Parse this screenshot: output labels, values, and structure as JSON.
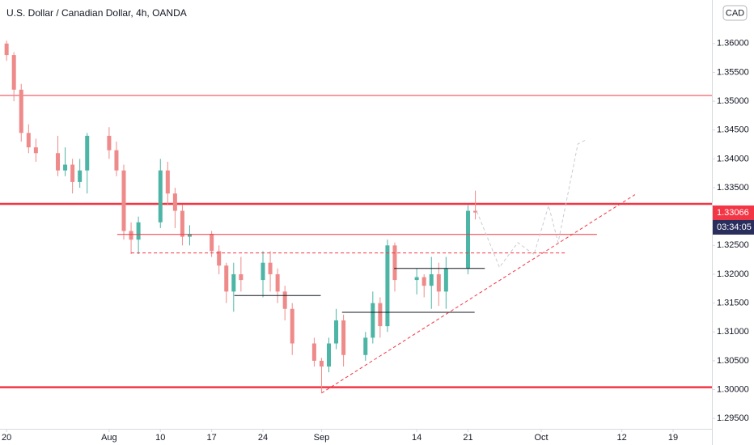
{
  "chart_data": {
    "type": "candlestick",
    "title": "U.S. Dollar / Canadian Dollar, 4h, OANDA",
    "currency": "CAD",
    "last_price": 1.33066,
    "countdown": "03:34:05",
    "up_color": "#4cb5a5",
    "down_color": "#ef8a8a",
    "x": [
      0,
      1,
      2,
      3,
      4,
      7,
      8,
      9,
      10,
      11,
      14,
      15,
      16,
      17,
      18,
      21,
      22,
      23,
      24,
      25,
      28,
      29,
      30,
      31,
      32,
      35,
      36,
      37,
      38,
      39,
      42,
      43,
      44,
      45,
      46,
      49,
      50,
      51,
      52,
      53,
      56,
      57,
      58,
      59,
      60,
      63,
      64
    ],
    "open": [
      1.36,
      1.358,
      1.352,
      1.3445,
      1.342,
      1.341,
      1.338,
      1.339,
      1.336,
      1.338,
      1.344,
      1.3415,
      1.338,
      1.3275,
      1.326,
      1.329,
      1.338,
      1.334,
      1.331,
      1.3265,
      1.327,
      1.324,
      1.3215,
      1.317,
      1.32,
      1.319,
      1.322,
      1.32,
      1.317,
      1.314,
      1.308,
      1.305,
      1.304,
      1.308,
      1.312,
      1.306,
      1.309,
      1.315,
      1.311,
      1.325,
      1.319,
      1.3195,
      1.318,
      1.32,
      1.317,
      1.321,
      1.331
    ],
    "high": [
      1.3605,
      1.3585,
      1.353,
      1.346,
      1.3435,
      1.344,
      1.342,
      1.34,
      1.34,
      1.3445,
      1.3455,
      1.343,
      1.339,
      1.329,
      1.33,
      1.34,
      1.3395,
      1.335,
      1.332,
      1.3285,
      1.3275,
      1.325,
      1.322,
      1.322,
      1.323,
      1.324,
      1.324,
      1.321,
      1.318,
      1.315,
      1.309,
      1.3055,
      1.309,
      1.314,
      1.313,
      1.31,
      1.317,
      1.316,
      1.326,
      1.3255,
      1.321,
      1.32,
      1.323,
      1.322,
      1.323,
      1.332,
      1.3345
    ],
    "low": [
      1.357,
      1.35,
      1.343,
      1.341,
      1.3395,
      1.337,
      1.337,
      1.334,
      1.335,
      1.334,
      1.34,
      1.337,
      1.326,
      1.3235,
      1.3235,
      1.328,
      1.332,
      1.328,
      1.325,
      1.325,
      1.323,
      1.32,
      1.315,
      1.3135,
      1.317,
      1.316,
      1.317,
      1.315,
      1.312,
      1.306,
      1.304,
      1.2995,
      1.303,
      1.307,
      1.304,
      1.305,
      1.308,
      1.309,
      1.31,
      1.317,
      1.3165,
      1.316,
      1.314,
      1.3145,
      1.314,
      1.32,
      1.3295
    ],
    "close": [
      1.358,
      1.352,
      1.3445,
      1.342,
      1.341,
      1.338,
      1.339,
      1.336,
      1.338,
      1.344,
      1.3415,
      1.338,
      1.3275,
      1.326,
      1.329,
      1.338,
      1.334,
      1.331,
      1.3265,
      1.327,
      1.324,
      1.3215,
      1.317,
      1.32,
      1.319,
      1.322,
      1.32,
      1.317,
      1.314,
      1.308,
      1.305,
      1.304,
      1.308,
      1.312,
      1.306,
      1.309,
      1.315,
      1.311,
      1.325,
      1.319,
      1.3195,
      1.318,
      1.32,
      1.317,
      1.321,
      1.331,
      1.3307
    ],
    "xlim": [
      -0.9,
      96.3
    ],
    "ylim": [
      1.2932,
      1.36755
    ],
    "xticks": [
      {
        "value": 0,
        "label": "20"
      },
      {
        "value": 14,
        "label": "Aug"
      },
      {
        "value": 21,
        "label": "10"
      },
      {
        "value": 28,
        "label": "17"
      },
      {
        "value": 35,
        "label": "24"
      },
      {
        "value": 43,
        "label": "Sep"
      },
      {
        "value": 56,
        "label": "14"
      },
      {
        "value": 63,
        "label": "21"
      },
      {
        "value": 73,
        "label": "Oct"
      },
      {
        "value": 84,
        "label": "12"
      },
      {
        "value": 91,
        "label": "19"
      }
    ],
    "yticks": [
      {
        "value": 1.295,
        "label": "1.29500"
      },
      {
        "value": 1.3,
        "label": "1.30000"
      },
      {
        "value": 1.305,
        "label": "1.30500"
      },
      {
        "value": 1.31,
        "label": "1.31000"
      },
      {
        "value": 1.315,
        "label": "1.31500"
      },
      {
        "value": 1.32,
        "label": "1.32000"
      },
      {
        "value": 1.325,
        "label": "1.32500"
      },
      {
        "value": 1.33,
        "label": "1.33000"
      },
      {
        "value": 1.335,
        "label": "1.33500"
      },
      {
        "value": 1.34,
        "label": "1.34000"
      },
      {
        "value": 1.345,
        "label": "1.34500"
      },
      {
        "value": 1.35,
        "label": "1.35000"
      },
      {
        "value": 1.355,
        "label": "1.35500"
      },
      {
        "value": 1.36,
        "label": "1.36000"
      }
    ],
    "levels": [
      {
        "value": 1.351,
        "color": "#f23645",
        "width": 1
      },
      {
        "value": 1.3322,
        "color": "#f23645",
        "width": 2.5
      },
      {
        "value": 1.3004,
        "color": "#f23645",
        "width": 2.5
      }
    ],
    "drawings": [
      {
        "x": [
          15.1,
          80.6
        ],
        "y": [
          1.3269,
          1.3269
        ],
        "color": "#f23645",
        "dashed": false
      },
      {
        "x": [
          17.0,
          76.4
        ],
        "y": [
          1.3237,
          1.3237
        ],
        "color": "#f23645",
        "dashed": true
      },
      {
        "x": [
          31.1,
          42.9
        ],
        "y": [
          1.3163,
          1.3163
        ],
        "color": "#131722",
        "dashed": false
      },
      {
        "x": [
          45.8,
          63.9
        ],
        "y": [
          1.3134,
          1.3134
        ],
        "color": "#131722",
        "dashed": false
      },
      {
        "x": [
          52.9,
          65.3
        ],
        "y": [
          1.321,
          1.321
        ],
        "color": "#131722",
        "dashed": false
      },
      {
        "x": [
          43.0,
          85.8
        ],
        "y": [
          1.2994,
          1.3338
        ],
        "color": "#f23645",
        "dashed": true
      },
      {
        "x": [
          64.2,
          67.3,
          69.8,
          72.0,
          74.0,
          75.3,
          78.0,
          79.1
        ],
        "y": [
          1.3309,
          1.3212,
          1.3255,
          1.3234,
          1.3319,
          1.3255,
          1.3426,
          1.3433
        ],
        "color": "#c8ccd4",
        "dashed": true
      }
    ]
  }
}
